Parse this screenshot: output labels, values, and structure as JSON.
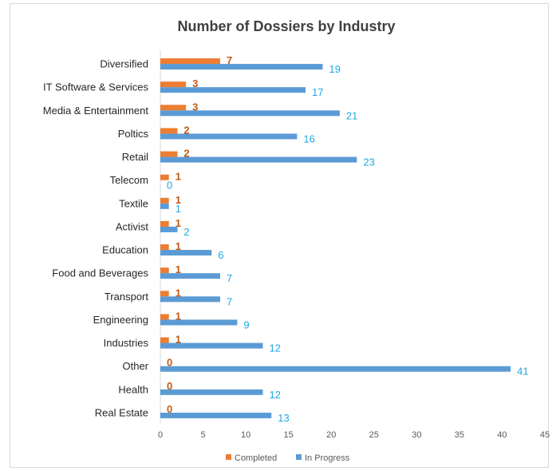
{
  "chart_data": {
    "type": "bar",
    "orientation": "horizontal",
    "title": "Number of Dossiers by Industry",
    "categories": [
      "Diversified",
      "IT Software & Services",
      "Media & Entertainment",
      "Poltics",
      "Retail",
      "Telecom",
      "Textile",
      "Activist",
      "Education",
      "Food and Beverages",
      "Transport",
      "Engineering",
      "Industries",
      "Other",
      "Health",
      "Real Estate"
    ],
    "series": [
      {
        "name": "Completed",
        "color": "#ed7d31",
        "values": [
          7,
          3,
          3,
          2,
          2,
          1,
          1,
          1,
          1,
          1,
          1,
          1,
          1,
          0,
          0,
          0
        ]
      },
      {
        "name": "In Progress",
        "color": "#5b9bd5",
        "values": [
          19,
          17,
          21,
          16,
          23,
          0,
          1,
          2,
          6,
          7,
          7,
          9,
          12,
          41,
          12,
          13
        ]
      }
    ],
    "xlim": [
      0,
      45
    ],
    "xticks": [
      "0",
      "5",
      "10",
      "15",
      "20",
      "25",
      "30",
      "35",
      "40",
      "45"
    ],
    "xlabel": "",
    "ylabel": "",
    "grid": false,
    "legend_position": "bottom"
  }
}
